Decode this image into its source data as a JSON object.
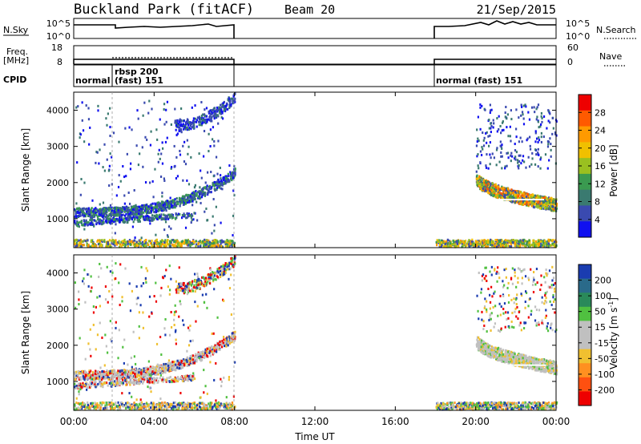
{
  "header": {
    "station": "Buckland Park (fitACF)",
    "beam": "Beam 20",
    "date": "21/Sep/2015"
  },
  "top_panels": {
    "nsky_label": "N.Sky",
    "nsky_ticks": [
      "10^5",
      "10^0"
    ],
    "nsearch_label": "N.Search",
    "nsearch_ticks": [
      "10^5",
      "10^0"
    ],
    "freq_label": "Freq.",
    "freq_unit": "[MHz]",
    "freq_ticks": [
      "18",
      "8"
    ],
    "nave_label": "Nave",
    "nave_ticks": [
      "60",
      "0"
    ],
    "cpid_label": "CPID",
    "cpid_segments": [
      {
        "label": "normal",
        "start_h": 0,
        "end_h": 2
      },
      {
        "label": "rbsp 200",
        "start_h": 2,
        "end_h": 8
      },
      {
        "label": "(fast) 151",
        "start_h": 2,
        "end_h": 8
      },
      {
        "label": "normal (fast) 151",
        "start_h": 18,
        "end_h": 24
      }
    ]
  },
  "time_axis": {
    "label": "Time UT",
    "ticks": [
      "00:00",
      "04:00",
      "08:00",
      "12:00",
      "16:00",
      "20:00",
      "00:00"
    ],
    "tick_hours": [
      0,
      4,
      8,
      12,
      16,
      20,
      24
    ]
  },
  "chart_data": [
    {
      "type": "heatmap",
      "name": "power-panel",
      "ylabel": "Slant Range [km]",
      "yticks": [
        1000,
        2000,
        3000,
        4000
      ],
      "ylim": [
        200,
        4500
      ],
      "xlim_hours": [
        0,
        24
      ],
      "data_intervals_hours": [
        [
          0,
          8
        ],
        [
          18,
          24
        ]
      ],
      "colorbar": {
        "label": "Power [dB]",
        "ticks": [
          "28",
          "24",
          "20",
          "16",
          "12",
          "8",
          "4"
        ],
        "colors": [
          "#ee0000",
          "#ff5a00",
          "#ff9a00",
          "#f0c000",
          "#9ac020",
          "#3a9a50",
          "#3a7a70",
          "#3a4ab0",
          "#1010f0"
        ]
      }
    },
    {
      "type": "heatmap",
      "name": "velocity-panel",
      "ylabel": "Slant Range [km]",
      "yticks": [
        1000,
        2000,
        3000,
        4000
      ],
      "ylim": [
        200,
        4500
      ],
      "xlim_hours": [
        0,
        24
      ],
      "data_intervals_hours": [
        [
          0,
          8
        ],
        [
          18,
          24
        ]
      ],
      "colorbar": {
        "label": "Velocity [m s",
        "label_sup": "-1",
        "label_end": "]",
        "ticks": [
          "200",
          "100",
          "50",
          "15",
          "-15",
          "-50",
          "-100",
          "-200"
        ],
        "colors": [
          "#1a3cb0",
          "#2a6a8a",
          "#2a8a5a",
          "#50c040",
          "#c0c0c0",
          "#c0c0c0",
          "#f0c030",
          "#ff9020",
          "#ff5010",
          "#ee0000"
        ]
      }
    }
  ]
}
